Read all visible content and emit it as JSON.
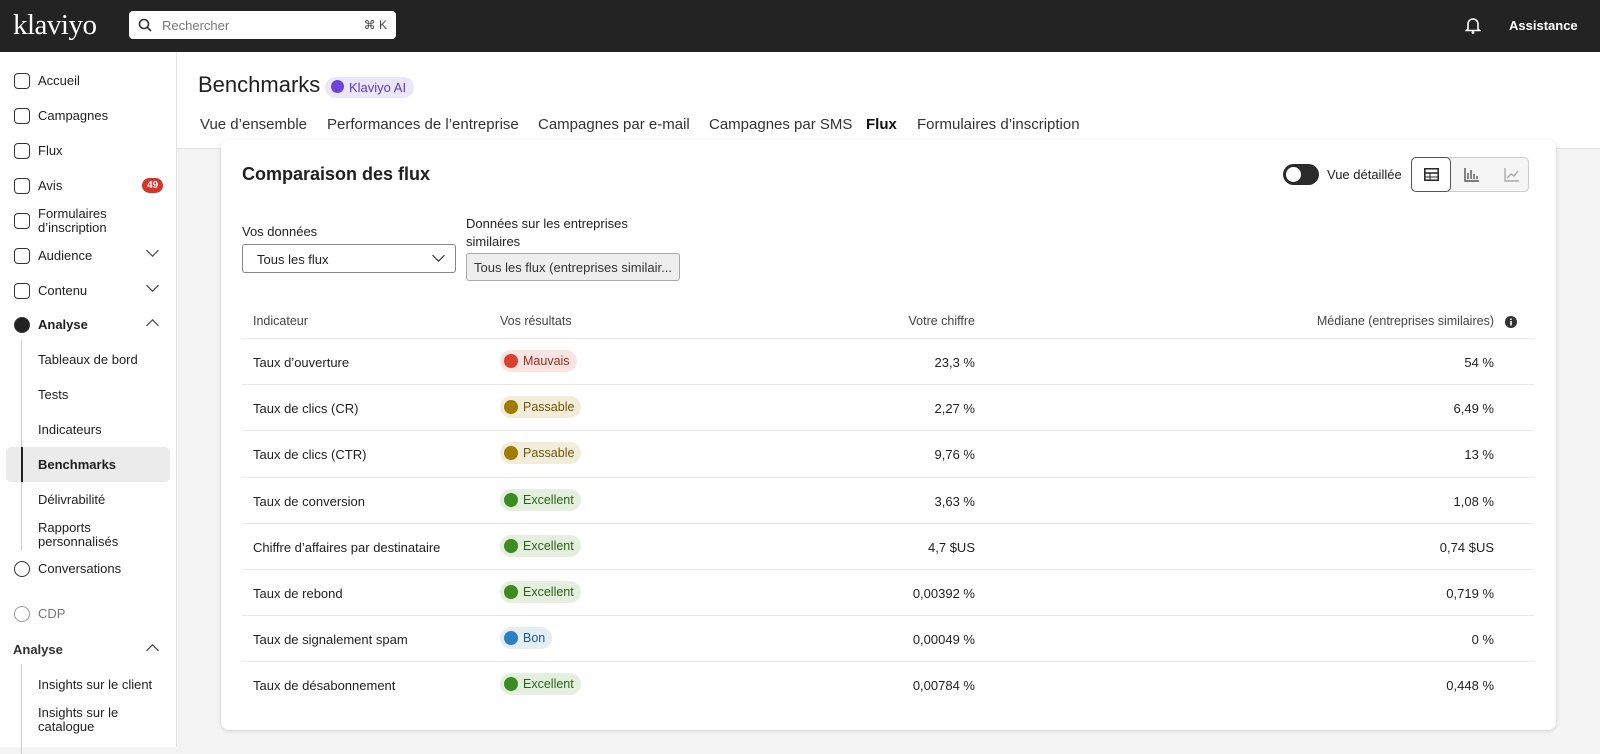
{
  "topbar": {
    "logo": "klaviyo",
    "search_placeholder": "Rechercher",
    "search_shortcut": "⌘ K",
    "help": "Assistance"
  },
  "sidebar": {
    "items": [
      "Accueil",
      "Campagnes",
      "Flux",
      "Avis",
      "Formulaires d’inscription",
      "Audience",
      "Contenu",
      "Analyse"
    ],
    "avis_badge": "49",
    "analyse_items": [
      "Tableaux de bord",
      "Tests",
      "Indicateurs",
      "Benchmarks",
      "Délivrabilité",
      "Rapports personnalisés"
    ],
    "after_items": [
      "Conversations",
      "CDP"
    ],
    "section": "Analyse",
    "section_items": [
      "Insights sur le client",
      "Insights sur le catalogue"
    ]
  },
  "header": {
    "title": "Benchmarks",
    "ai_badge": "Klaviyo AI",
    "tabs": [
      "Vue d’ensemble",
      "Performances de l’entreprise",
      "Campagnes par e-mail",
      "Campagnes par SMS",
      "Flux",
      "Formulaires d’inscription"
    ],
    "active_tab": 4
  },
  "card": {
    "title": "Comparaison des flux",
    "toggle_label": "Vue détaillée",
    "your_data_label": "Vos données",
    "your_data_value": "Tous les flux",
    "peer_label": "Données sur les entreprises similaires",
    "peer_value": "Tous les flux (entreprises similair...",
    "table": {
      "headers": [
        "Indicateur",
        "Vos résultats",
        "Votre chiffre",
        "Médiane (entreprises similaires)"
      ],
      "rows": [
        {
          "indicator": "Taux d’ouverture",
          "status": {
            "label": "Mauvais",
            "color": "#d9412e"
          },
          "value": "23,3 %",
          "median": "54 %"
        },
        {
          "indicator": "Taux de clics (CR)",
          "status": {
            "label": "Passable",
            "color": "#a07c00"
          },
          "value": "2,27 %",
          "median": "6,49 %"
        },
        {
          "indicator": "Taux de clics (CTR)",
          "status": {
            "label": "Passable",
            "color": "#a07c00"
          },
          "value": "9,76 %",
          "median": "13 %"
        },
        {
          "indicator": "Taux de conversion",
          "status": {
            "label": "Excellent",
            "color": "#3d8c1f"
          },
          "value": "3,63 %",
          "median": "1,08 %"
        },
        {
          "indicator": "Chiffre d’affaires par destinataire",
          "status": {
            "label": "Excellent",
            "color": "#3d8c1f"
          },
          "value": "4,7 $US",
          "median": "0,74 $US"
        },
        {
          "indicator": "Taux de rebond",
          "status": {
            "label": "Excellent",
            "color": "#3d8c1f"
          },
          "value": "0,00392 %",
          "median": "0,719 %"
        },
        {
          "indicator": "Taux de signalement spam",
          "status": {
            "label": "Bon",
            "color": "#2d7fc1"
          },
          "value": "0,00049 %",
          "median": "0 %"
        },
        {
          "indicator": "Taux de désabonnement",
          "status": {
            "label": "Excellent",
            "color": "#3d8c1f"
          },
          "value": "0,00784 %",
          "median": "0,448 %"
        }
      ]
    }
  }
}
